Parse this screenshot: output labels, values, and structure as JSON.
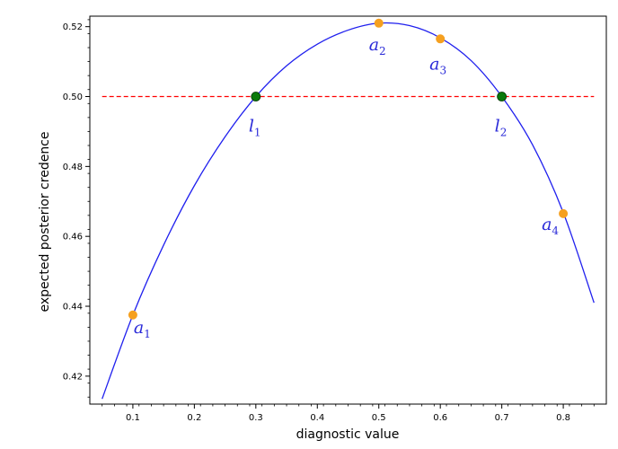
{
  "chart_data": {
    "type": "line",
    "title": "",
    "xlabel": "diagnostic value",
    "ylabel": "expected posterior credence",
    "xlim": [
      0.03,
      0.87
    ],
    "ylim": [
      0.412,
      0.523
    ],
    "x_ticks": [
      {
        "value": 0.1,
        "label": "0.1"
      },
      {
        "value": 0.2,
        "label": "0.2"
      },
      {
        "value": 0.3,
        "label": "0.3"
      },
      {
        "value": 0.4,
        "label": "0.4"
      },
      {
        "value": 0.5,
        "label": "0.5"
      },
      {
        "value": 0.6,
        "label": "0.6"
      },
      {
        "value": 0.7,
        "label": "0.7"
      },
      {
        "value": 0.8,
        "label": "0.8"
      }
    ],
    "y_ticks": [
      {
        "value": 0.42,
        "label": "0.42"
      },
      {
        "value": 0.44,
        "label": "0.44"
      },
      {
        "value": 0.46,
        "label": "0.46"
      },
      {
        "value": 0.48,
        "label": "0.48"
      },
      {
        "value": 0.5,
        "label": "0.50"
      },
      {
        "value": 0.52,
        "label": "0.52"
      }
    ],
    "curve": {
      "color": "#2020ee",
      "x": [
        0.05,
        0.1,
        0.15,
        0.2,
        0.25,
        0.3,
        0.35,
        0.4,
        0.45,
        0.5,
        0.55,
        0.6,
        0.65,
        0.7,
        0.75,
        0.8,
        0.85
      ],
      "y": [
        0.4135,
        0.4375,
        0.4575,
        0.4745,
        0.4885,
        0.5,
        0.5088,
        0.515,
        0.519,
        0.521,
        0.5203,
        0.5168,
        0.5103,
        0.5,
        0.4862,
        0.4668,
        0.441
      ]
    },
    "reference_line": {
      "y": 0.5,
      "color": "#ff0000",
      "style": "dashed"
    },
    "orange_points": {
      "color": "#f5a020",
      "points": [
        {
          "x": 0.1,
          "y": 0.4375,
          "label": "a",
          "sub": "1"
        },
        {
          "x": 0.5,
          "y": 0.521,
          "label": "a",
          "sub": "2"
        },
        {
          "x": 0.6,
          "y": 0.5165,
          "label": "a",
          "sub": "3"
        },
        {
          "x": 0.8,
          "y": 0.4665,
          "label": "a",
          "sub": "4"
        }
      ]
    },
    "green_points": {
      "color": "#0a7a0a",
      "points": [
        {
          "x": 0.3,
          "y": 0.5,
          "label": "l",
          "sub": "1"
        },
        {
          "x": 0.7,
          "y": 0.5,
          "label": "l",
          "sub": "2"
        }
      ]
    },
    "grid": false,
    "legend": "none"
  }
}
